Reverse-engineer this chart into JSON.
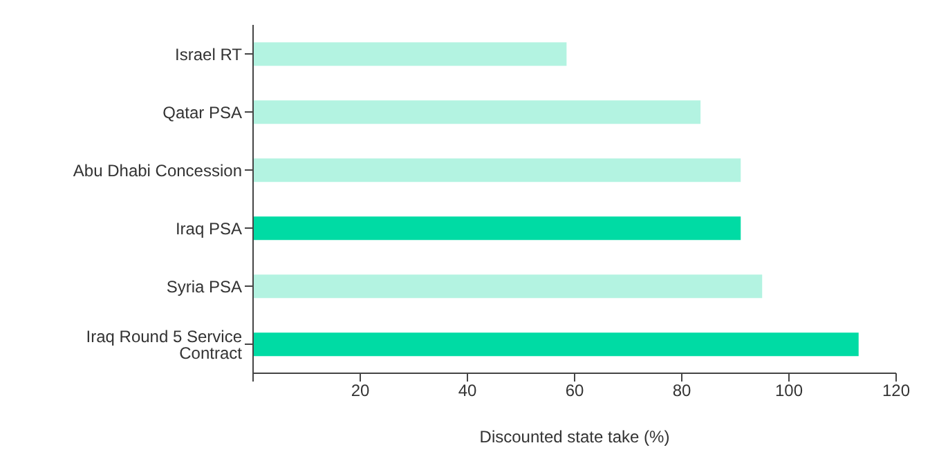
{
  "chart_data": {
    "type": "bar",
    "orientation": "horizontal",
    "xlabel": "Discounted state take (%)",
    "categories": [
      "Israel RT",
      "Qatar PSA",
      "Abu Dhabi Concession",
      "Iraq PSA",
      "Syria PSA",
      "Iraq Round 5 Service Contract"
    ],
    "values": [
      58.5,
      83.5,
      91,
      91,
      95,
      113
    ],
    "colors": [
      "#b3f3e1",
      "#b3f3e1",
      "#b3f3e1",
      "#00dba4",
      "#b3f3e1",
      "#00dba4"
    ],
    "xlim": [
      0,
      120
    ],
    "xticks": [
      {
        "value": 0,
        "label": null
      },
      20,
      40,
      60,
      80,
      100,
      120
    ],
    "grid": false,
    "legend": false
  }
}
